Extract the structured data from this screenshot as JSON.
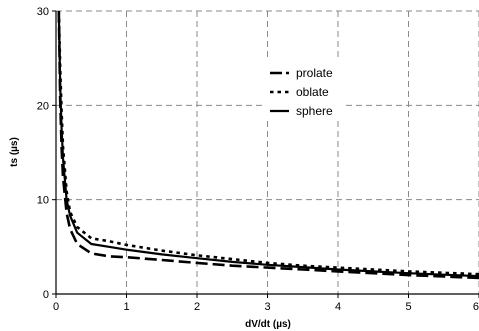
{
  "chart_data": {
    "type": "line",
    "xlabel": "dV/dt (µs)",
    "ylabel": "ts (µs)",
    "xlim": [
      0,
      6
    ],
    "ylim": [
      0,
      30
    ],
    "x_ticks": [
      0,
      1,
      2,
      3,
      4,
      5,
      6
    ],
    "y_ticks": [
      0,
      10,
      20,
      30
    ],
    "x_tick_labels": [
      "0",
      "1",
      "2",
      "3",
      "4",
      "5",
      "6"
    ],
    "y_tick_labels": [
      "0",
      "10",
      "20",
      "30"
    ],
    "grid": true,
    "legend_position": "top-right",
    "x": [
      0.04,
      0.06,
      0.08,
      0.1,
      0.15,
      0.2,
      0.3,
      0.5,
      0.75,
      1,
      1.5,
      2,
      2.5,
      3,
      3.5,
      4,
      4.5,
      5,
      5.5,
      6
    ],
    "series": [
      {
        "name": "prolate",
        "style": "long-dash",
        "values": [
          30,
          20.5,
          15.5,
          12.4,
          8.6,
          6.9,
          5.3,
          4.3,
          4.0,
          3.9,
          3.6,
          3.3,
          3.0,
          2.8,
          2.6,
          2.4,
          2.2,
          2.0,
          1.85,
          1.7
        ]
      },
      {
        "name": "oblate",
        "style": "short-dash",
        "values": [
          30,
          24,
          19.3,
          15.6,
          10.9,
          8.7,
          7.1,
          5.9,
          5.6,
          5.2,
          4.6,
          4.1,
          3.7,
          3.3,
          3.0,
          2.8,
          2.6,
          2.4,
          2.25,
          2.1
        ]
      },
      {
        "name": "sphere",
        "style": "solid",
        "values": [
          30,
          22,
          17.5,
          14.4,
          10.0,
          8.3,
          6.5,
          5.3,
          5.0,
          4.7,
          4.2,
          3.8,
          3.4,
          3.1,
          2.85,
          2.6,
          2.4,
          2.2,
          2.05,
          1.9
        ]
      }
    ]
  }
}
